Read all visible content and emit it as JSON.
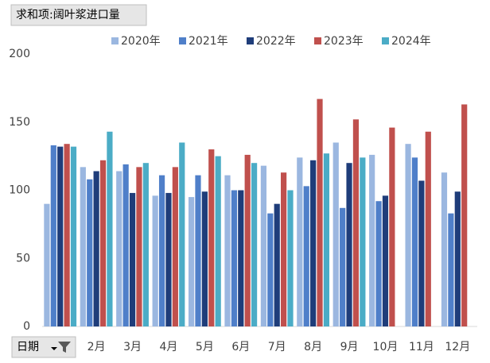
{
  "buttons": {
    "value_field": "求和项:阔叶浆进口量",
    "axis_field": "日期"
  },
  "chart_data": {
    "type": "bar",
    "categories": [
      null,
      "2月",
      "3月",
      "4月",
      "5月",
      "6月",
      "7月",
      "8月",
      "9月",
      "10月",
      "11月",
      "12月"
    ],
    "series": [
      {
        "name": "2020年",
        "color": "#9bb7e0",
        "values": [
          90,
          117,
          114,
          96,
          95,
          111,
          118,
          124,
          135,
          126,
          134,
          113
        ]
      },
      {
        "name": "2021年",
        "color": "#4f7fc9",
        "values": [
          133,
          108,
          119,
          111,
          111,
          100,
          83,
          103,
          87,
          92,
          124,
          83
        ]
      },
      {
        "name": "2022年",
        "color": "#1f3d7a",
        "values": [
          132,
          114,
          98,
          98,
          99,
          100,
          90,
          122,
          120,
          96,
          107,
          99
        ]
      },
      {
        "name": "2023年",
        "color": "#c0504d",
        "values": [
          134,
          122,
          117,
          117,
          130,
          126,
          113,
          167,
          152,
          146,
          143,
          163
        ]
      },
      {
        "name": "2024年",
        "color": "#4bacc6",
        "values": [
          132,
          143,
          120,
          135,
          125,
          120,
          100,
          127,
          124,
          null,
          null,
          null
        ]
      }
    ],
    "ylim": [
      0,
      200
    ],
    "yticks": [
      0,
      50,
      100,
      150,
      200
    ],
    "grid": false,
    "legend": "top"
  }
}
